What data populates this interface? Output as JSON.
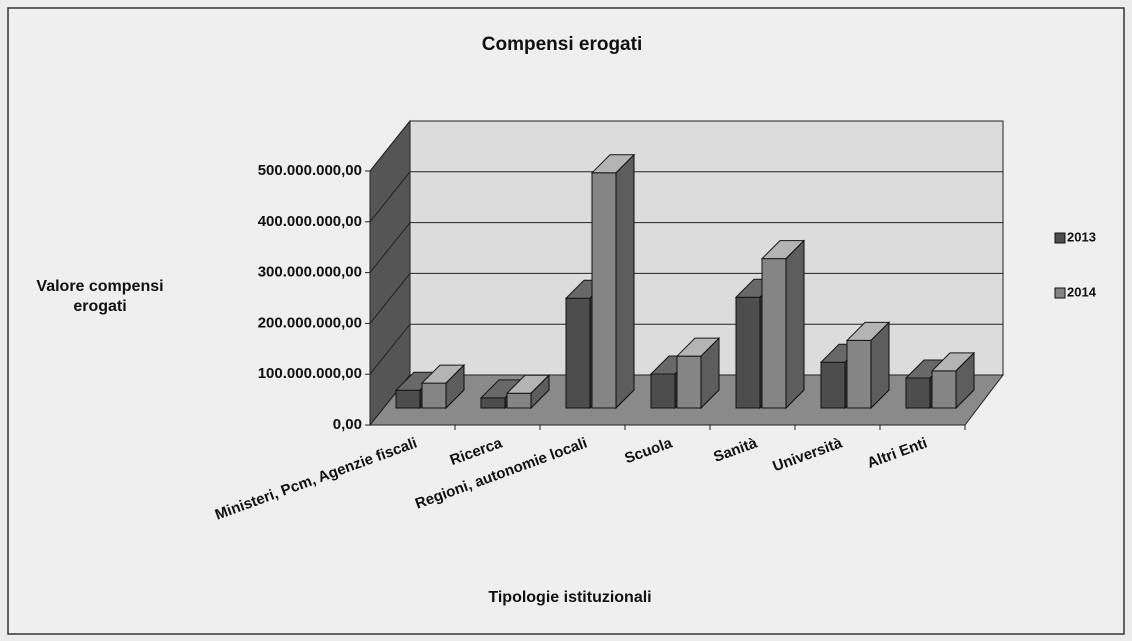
{
  "chart_data": {
    "type": "bar3d",
    "title": "Compensi erogati",
    "y_axis_label": "Valore compensi erogati",
    "x_axis_label": "Tipologie istituzionali",
    "categories": [
      "Ministeri, Pcm, Agenzie fiscali",
      "Ricerca",
      "Regioni, autonomie locali",
      "Scuola",
      "Sanità",
      "Università",
      "Altri Enti"
    ],
    "series": [
      {
        "name": "2013",
        "color": "#4d4d4d",
        "values": [
          35000000,
          20000000,
          216000000,
          67000000,
          218000000,
          90000000,
          59000000
        ]
      },
      {
        "name": "2014",
        "color": "#858585",
        "values": [
          49000000,
          29000000,
          463000000,
          102000000,
          294000000,
          133000000,
          73000000
        ]
      }
    ],
    "ylim": [
      0,
      500000000
    ],
    "yticks": [
      {
        "value": 0,
        "label": "0,00"
      },
      {
        "value": 100000000,
        "label": "100.000.000,00"
      },
      {
        "value": 200000000,
        "label": "200.000.000,00"
      },
      {
        "value": 300000000,
        "label": "300.000.000,00"
      },
      {
        "value": 400000000,
        "label": "400.000.000,00"
      },
      {
        "value": 500000000,
        "label": "500.000.000,00"
      }
    ],
    "grid": true,
    "legend": "right"
  }
}
